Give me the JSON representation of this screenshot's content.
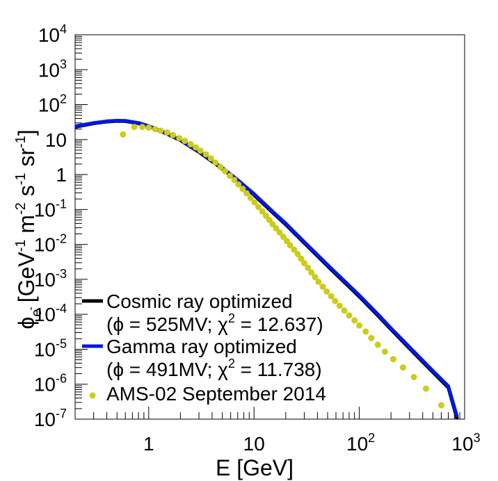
{
  "colors": {
    "cosmic": "#000000",
    "gamma": "#0018e6",
    "ams": "#cccc1a",
    "axis": "#000000"
  },
  "chart_data": {
    "type": "line",
    "xscale": "log",
    "yscale": "log",
    "xlim": [
      0.2,
      1000
    ],
    "ylim": [
      1e-07,
      10000
    ],
    "xlabel": "E [GeV]",
    "ylabel": "ϕe- [GeV-1 m-2 s-1 sr-1]",
    "ylabel_parts": {
      "phi": "ϕ",
      "sub": "e",
      "subsup": "-",
      "open": "[GeV",
      "e1": "-1",
      "m": " m",
      "e2": "-2",
      "s": " s",
      "e3": "-1",
      "sr": " sr",
      "e4": "-1",
      "close": "]"
    },
    "xticks": [
      {
        "value": 1,
        "base": "1",
        "exp": ""
      },
      {
        "value": 10,
        "base": "10",
        "exp": ""
      },
      {
        "value": 100,
        "base": "10",
        "exp": "2"
      },
      {
        "value": 1000,
        "base": "10",
        "exp": "3"
      }
    ],
    "yticks": [
      {
        "value": 1e-07,
        "base": "10",
        "exp": "-7"
      },
      {
        "value": 1e-06,
        "base": "10",
        "exp": "-6"
      },
      {
        "value": 1e-05,
        "base": "10",
        "exp": "-5"
      },
      {
        "value": 0.0001,
        "base": "10",
        "exp": "-4"
      },
      {
        "value": 0.001,
        "base": "10",
        "exp": "-3"
      },
      {
        "value": 0.01,
        "base": "10",
        "exp": "-2"
      },
      {
        "value": 0.1,
        "base": "10",
        "exp": "-1"
      },
      {
        "value": 1,
        "base": "1",
        "exp": ""
      },
      {
        "value": 10,
        "base": "10",
        "exp": ""
      },
      {
        "value": 100,
        "base": "10",
        "exp": "2"
      },
      {
        "value": 1000,
        "base": "10",
        "exp": "3"
      },
      {
        "value": 10000,
        "base": "10",
        "exp": "4"
      }
    ],
    "series": [
      {
        "name": "Cosmic ray optimized",
        "name2": "(ϕ = 525MV; χ2 = 12.637)",
        "name2_parts": {
          "a": "(ϕ = 525MV; χ",
          "sup": "2",
          "b": " = 12.637)"
        },
        "kind": "line",
        "color": "#000000",
        "x": [
          0.2,
          0.3,
          0.4,
          0.5,
          0.6,
          0.8,
          1,
          1.5,
          2,
          3,
          5,
          7,
          10,
          15,
          20,
          30,
          50,
          70,
          100,
          150,
          200,
          300,
          500,
          700,
          850
        ],
        "y": [
          23,
          29,
          32.5,
          34,
          33.5,
          29,
          24,
          14.5,
          9.5,
          4.4,
          1.45,
          0.66,
          0.26,
          0.082,
          0.037,
          0.011,
          0.0024,
          0.0009,
          0.00032,
          9.2e-05,
          3.7e-05,
          1.05e-05,
          2.2e-06,
          8e-07,
          1e-07
        ]
      },
      {
        "name": "Gamma ray optimized",
        "name2": "(ϕ = 491MV; χ2 = 11.738)",
        "name2_parts": {
          "a": "(ϕ = 491MV; χ",
          "sup": "2",
          "b": " = 11.738)"
        },
        "kind": "line",
        "color": "#0018e6",
        "x": [
          0.2,
          0.3,
          0.4,
          0.5,
          0.6,
          0.8,
          1,
          1.5,
          2,
          3,
          5,
          7,
          10,
          15,
          20,
          30,
          50,
          70,
          100,
          150,
          200,
          300,
          500,
          700,
          850
        ],
        "y": [
          24,
          30,
          33.5,
          35,
          34.5,
          30,
          24.5,
          15,
          9.8,
          4.6,
          1.55,
          0.7,
          0.28,
          0.088,
          0.04,
          0.0118,
          0.0026,
          0.00098,
          0.00035,
          0.0001,
          4e-05,
          1.15e-05,
          2.4e-06,
          8.8e-07,
          1.15e-07
        ]
      },
      {
        "name": "AMS-02 September 2014",
        "kind": "points",
        "color": "#cccc1a",
        "x": [
          0.57,
          0.73,
          0.87,
          1.0,
          1.15,
          1.3,
          1.5,
          1.7,
          1.95,
          2.2,
          2.5,
          2.8,
          3.1,
          3.5,
          3.9,
          4.3,
          4.8,
          5.3,
          5.9,
          6.5,
          7.1,
          7.8,
          8.5,
          9.3,
          10.1,
          11,
          12,
          13,
          14,
          15,
          16.2,
          17.5,
          19,
          20.5,
          22,
          24,
          26,
          28,
          30,
          32.5,
          35,
          38,
          41,
          45,
          49,
          54,
          59,
          65,
          72,
          80,
          90,
          100,
          115,
          130,
          150,
          175,
          210,
          260,
          330,
          430,
          600
        ],
        "y": [
          14,
          23,
          23,
          22,
          20,
          18,
          16,
          13.5,
          11,
          9.2,
          7.4,
          6,
          4.8,
          3.8,
          2.9,
          2.2,
          1.65,
          1.25,
          0.92,
          0.7,
          0.52,
          0.39,
          0.29,
          0.215,
          0.16,
          0.118,
          0.088,
          0.066,
          0.05,
          0.038,
          0.029,
          0.022,
          0.0165,
          0.0125,
          0.0095,
          0.0071,
          0.0053,
          0.0039,
          0.0029,
          0.00215,
          0.00158,
          0.00116,
          0.00085,
          0.00062,
          0.00045,
          0.00033,
          0.00024,
          0.000175,
          0.000128,
          9.3e-05,
          6.7e-05,
          4.8e-05,
          3.2e-05,
          2.1e-05,
          1.35e-05,
          8.5e-06,
          5.2e-06,
          3e-06,
          1.6e-06,
          7.5e-07,
          2.5e-07
        ]
      }
    ],
    "legend_position": "bottom-left"
  }
}
